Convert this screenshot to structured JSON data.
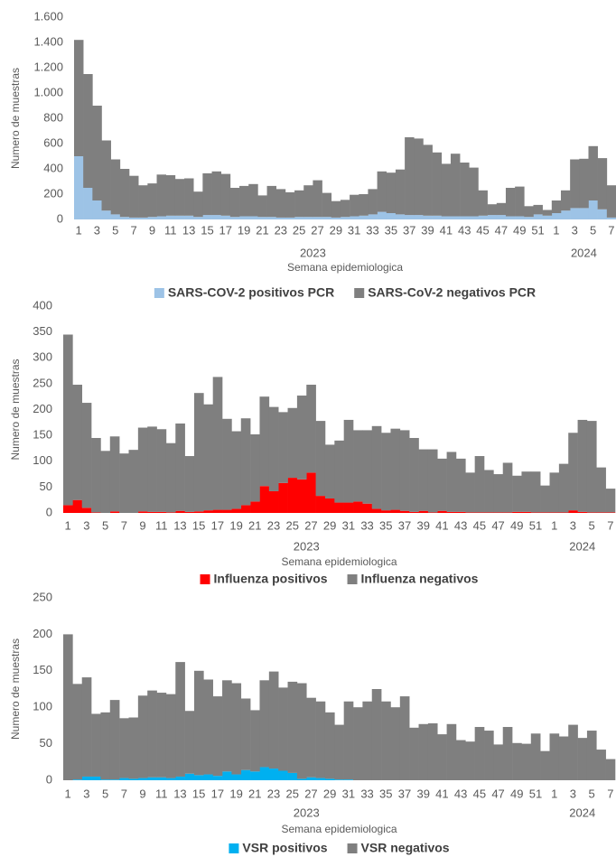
{
  "chart_data": [
    {
      "type": "bar",
      "stacked": true,
      "y_label": "Numero de muestras",
      "x_label": "Semana epidemiologica",
      "groups": [
        {
          "name": "2023",
          "categories": [
            "1",
            null,
            "3",
            null,
            "5",
            null,
            "7",
            null,
            "9",
            null,
            "11",
            null,
            "13",
            null,
            "15",
            null,
            "17",
            null,
            "19",
            null,
            "21",
            null,
            "23",
            null,
            "25",
            null,
            "27",
            null,
            "29",
            null,
            "31",
            null,
            "33",
            null,
            "35",
            null,
            "37",
            null,
            "39",
            null,
            "41",
            null,
            "43",
            null,
            "45",
            null,
            "47",
            null,
            "49",
            null,
            "51",
            null
          ]
        },
        {
          "name": "2024",
          "categories": [
            "1",
            null,
            "3",
            null,
            "5",
            null,
            "7"
          ]
        }
      ],
      "series": [
        {
          "name": "SARS-COV-2 positivos PCR",
          "color": "#9dc3e6",
          "values": [
            500,
            250,
            150,
            70,
            40,
            20,
            15,
            15,
            20,
            25,
            30,
            30,
            30,
            20,
            35,
            35,
            30,
            20,
            25,
            25,
            20,
            20,
            15,
            15,
            20,
            20,
            20,
            20,
            15,
            20,
            25,
            30,
            40,
            60,
            50,
            40,
            35,
            35,
            30,
            30,
            25,
            25,
            25,
            25,
            30,
            35,
            35,
            25,
            25,
            20,
            40,
            30,
            50,
            70,
            90,
            90,
            150,
            80,
            15
          ]
        },
        {
          "name": "SARS-CoV-2 negativos PCR",
          "color": "#7f7f7f",
          "values": [
            920,
            900,
            750,
            555,
            435,
            380,
            330,
            255,
            265,
            330,
            320,
            290,
            295,
            200,
            330,
            345,
            330,
            230,
            240,
            255,
            170,
            245,
            225,
            200,
            210,
            250,
            290,
            190,
            130,
            135,
            170,
            170,
            200,
            320,
            320,
            355,
            615,
            605,
            560,
            500,
            415,
            495,
            425,
            385,
            200,
            85,
            95,
            225,
            235,
            85,
            75,
            45,
            100,
            160,
            385,
            390,
            430,
            405,
            255
          ]
        }
      ],
      "ylim": [
        0,
        1600
      ],
      "yticks": [
        0,
        200,
        400,
        600,
        800,
        {
          "value": 1000,
          "label": "1.000"
        },
        {
          "value": 1200,
          "label": "1.200"
        },
        {
          "value": 1400,
          "label": "1.400"
        },
        {
          "value": 1600,
          "label": "1.600"
        }
      ]
    },
    {
      "type": "bar",
      "stacked": true,
      "y_label": "Numero de muestras",
      "x_label": "Semana epidemiologica",
      "groups": [
        {
          "name": "2023",
          "categories": [
            "1",
            null,
            "3",
            null,
            "5",
            null,
            "7",
            null,
            "9",
            null,
            "11",
            null,
            "13",
            null,
            "15",
            null,
            "17",
            null,
            "19",
            null,
            "21",
            null,
            "23",
            null,
            "25",
            null,
            "27",
            null,
            "29",
            null,
            "31",
            null,
            "33",
            null,
            "35",
            null,
            "37",
            null,
            "39",
            null,
            "41",
            null,
            "43",
            null,
            "45",
            null,
            "47",
            null,
            "49",
            null,
            "51",
            null
          ]
        },
        {
          "name": "2024",
          "categories": [
            "1",
            null,
            "3",
            null,
            "5",
            null,
            "7"
          ]
        }
      ],
      "series": [
        {
          "name": "Influenza positivos",
          "color": "#ff0000",
          "values": [
            15,
            25,
            10,
            1,
            0,
            3,
            0,
            0,
            3,
            2,
            2,
            1,
            4,
            2,
            3,
            5,
            6,
            6,
            8,
            15,
            22,
            52,
            42,
            58,
            68,
            65,
            78,
            33,
            28,
            20,
            20,
            22,
            18,
            8,
            5,
            6,
            4,
            2,
            4,
            1,
            4,
            2,
            2,
            1,
            1,
            1,
            1,
            1,
            2,
            2,
            1,
            1,
            1,
            1,
            5,
            2,
            1,
            1,
            1
          ]
        },
        {
          "name": "Influenza negativos",
          "color": "#7f7f7f",
          "values": [
            330,
            223,
            203,
            144,
            120,
            145,
            115,
            122,
            162,
            165,
            160,
            134,
            169,
            108,
            229,
            205,
            257,
            176,
            150,
            168,
            130,
            173,
            163,
            137,
            135,
            162,
            170,
            145,
            104,
            120,
            160,
            138,
            142,
            160,
            150,
            157,
            156,
            143,
            119,
            122,
            101,
            116,
            103,
            77,
            109,
            82,
            74,
            96,
            70,
            78,
            79,
            52,
            77,
            94,
            150,
            178,
            177,
            87,
            46
          ]
        }
      ],
      "ylim": [
        0,
        400
      ],
      "yticks": [
        0,
        50,
        100,
        150,
        200,
        250,
        300,
        350,
        400
      ]
    },
    {
      "type": "bar",
      "stacked": true,
      "y_label": "Numero de muestras",
      "x_label": "Semana epidemiologica",
      "groups": [
        {
          "name": "2023",
          "categories": [
            "1",
            null,
            "3",
            null,
            "5",
            null,
            "7",
            null,
            "9",
            null,
            "11",
            null,
            "13",
            null,
            "15",
            null,
            "17",
            null,
            "19",
            null,
            "21",
            null,
            "23",
            null,
            "25",
            null,
            "27",
            null,
            "29",
            null,
            "31",
            null,
            "33",
            null,
            "35",
            null,
            "37",
            null,
            "39",
            null,
            "41",
            null,
            "43",
            null,
            "45",
            null,
            "47",
            null,
            "49",
            null,
            "51",
            null
          ]
        },
        {
          "name": "2024",
          "categories": [
            "1",
            null,
            "3",
            null,
            "5",
            null,
            "7"
          ]
        }
      ],
      "series": [
        {
          "name": "VSR positivos",
          "color": "#00b0f0",
          "values": [
            0,
            1,
            5,
            5,
            1,
            1,
            3,
            2,
            3,
            4,
            4,
            3,
            5,
            9,
            7,
            8,
            6,
            12,
            8,
            14,
            12,
            18,
            16,
            13,
            10,
            2,
            4,
            3,
            2,
            1,
            1,
            0,
            0,
            0,
            0,
            0,
            0,
            0,
            0,
            0,
            0,
            0,
            0,
            0,
            0,
            0,
            0,
            0,
            0,
            0,
            0,
            0,
            0,
            0,
            0,
            0,
            0,
            0,
            0
          ]
        },
        {
          "name": "VSR negativos",
          "color": "#7f7f7f",
          "values": [
            200,
            131,
            136,
            86,
            92,
            109,
            82,
            84,
            113,
            119,
            116,
            115,
            157,
            86,
            143,
            130,
            109,
            125,
            125,
            98,
            84,
            119,
            133,
            114,
            125,
            131,
            109,
            105,
            91,
            75,
            107,
            100,
            108,
            125,
            108,
            100,
            115,
            72,
            77,
            78,
            63,
            77,
            55,
            53,
            73,
            68,
            49,
            73,
            51,
            50,
            64,
            40,
            64,
            60,
            76,
            58,
            68,
            42,
            29
          ]
        }
      ],
      "ylim": [
        0,
        250
      ],
      "yticks": [
        0,
        50,
        100,
        150,
        200,
        250
      ]
    }
  ]
}
